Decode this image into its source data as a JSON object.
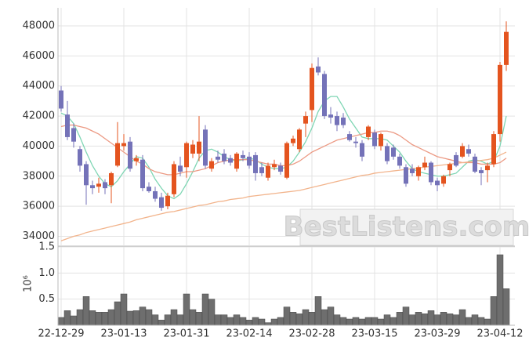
{
  "chart_data": [
    {
      "type": "candlestick",
      "up_color": "#e4541f",
      "down_color": "#7472b8",
      "open": [
        43700,
        42100,
        41200,
        39800,
        38800,
        37400,
        37300,
        37600,
        37400,
        38700,
        40000,
        40300,
        39000,
        39100,
        37300,
        37000,
        36600,
        36000,
        36800,
        38700,
        38600,
        39500,
        39500,
        41100,
        38500,
        39300,
        39500,
        39200,
        38500,
        39400,
        39300,
        39400,
        38600,
        37900,
        38600,
        38700,
        37900,
        40200,
        39800,
        41500,
        42400,
        45300,
        44800,
        42100,
        42000,
        41900,
        40800,
        40300,
        40200,
        40600,
        40900,
        40000,
        40000,
        39900,
        39300,
        38600,
        38500,
        38000,
        38600,
        38900,
        37700,
        37500,
        38400,
        39400,
        39300,
        39800,
        39300,
        38400,
        38400,
        38800,
        40800,
        45400
      ],
      "high": [
        44000,
        43000,
        41500,
        40000,
        39000,
        37700,
        37900,
        37800,
        38300,
        41600,
        40800,
        40600,
        39400,
        39400,
        37600,
        37300,
        36900,
        36900,
        39000,
        39300,
        40300,
        40400,
        42000,
        41400,
        39200,
        39700,
        39800,
        39400,
        39600,
        39700,
        39600,
        39600,
        38900,
        38900,
        39100,
        38900,
        40300,
        40700,
        41200,
        42300,
        45500,
        45900,
        45000,
        42600,
        42300,
        42200,
        41000,
        40600,
        40400,
        41400,
        41100,
        40900,
        40200,
        40100,
        39500,
        38800,
        38800,
        38700,
        39300,
        39000,
        37900,
        38100,
        38900,
        39600,
        40200,
        40100,
        39500,
        38600,
        38900,
        41000,
        45600,
        48300
      ],
      "low": [
        42300,
        40400,
        39900,
        38300,
        36100,
        36800,
        36900,
        36800,
        36200,
        38600,
        39700,
        38300,
        38700,
        37000,
        36900,
        36300,
        35700,
        35800,
        36600,
        38000,
        37900,
        39200,
        39000,
        38500,
        38300,
        38900,
        38800,
        38700,
        38300,
        39000,
        38500,
        37700,
        38000,
        37700,
        38400,
        38100,
        37800,
        40000,
        39600,
        40600,
        41600,
        44700,
        41800,
        41500,
        41000,
        41200,
        40300,
        39900,
        39000,
        40400,
        39800,
        39700,
        38800,
        39100,
        38500,
        37300,
        38000,
        37700,
        38400,
        37400,
        37000,
        37300,
        38000,
        38600,
        39200,
        39300,
        38200,
        37400,
        37600,
        38600,
        40300,
        45000
      ],
      "close": [
        42500,
        40600,
        40300,
        38700,
        37400,
        37200,
        37500,
        37200,
        38200,
        40200,
        40200,
        38500,
        39200,
        37200,
        37000,
        36500,
        35900,
        36700,
        38800,
        38300,
        40200,
        40100,
        40300,
        38700,
        39000,
        39100,
        39000,
        38900,
        39500,
        39200,
        38700,
        38200,
        38200,
        38700,
        38800,
        38300,
        40200,
        40500,
        41100,
        42000,
        45200,
        44900,
        42000,
        41900,
        41400,
        41400,
        40400,
        40200,
        39300,
        41300,
        40000,
        40800,
        39000,
        39300,
        38700,
        37500,
        38200,
        38600,
        38900,
        37600,
        37400,
        38000,
        38800,
        38700,
        40000,
        39500,
        38300,
        38200,
        38700,
        40800,
        45400,
        47600
      ],
      "lines": [
        {
          "color": "#7fd6b4",
          "values": [
            42200,
            42000,
            41500,
            40600,
            39600,
            38700,
            38000,
            37500,
            37300,
            37700,
            38300,
            38800,
            39300,
            39200,
            38600,
            37800,
            37200,
            36700,
            36500,
            36800,
            37500,
            38300,
            39200,
            39700,
            39800,
            39600,
            39300,
            39100,
            39000,
            39100,
            39200,
            39100,
            38800,
            38600,
            38500,
            38500,
            38600,
            39000,
            39600,
            40300,
            41200,
            42300,
            43000,
            43300,
            43300,
            42600,
            41800,
            41200,
            40600,
            40500,
            40500,
            40500,
            40400,
            40000,
            39600,
            39000,
            38500,
            38300,
            38200,
            38100,
            38000,
            38000,
            38100,
            38200,
            38600,
            39000,
            39100,
            39000,
            38800,
            39000,
            40000,
            42000
          ]
        },
        {
          "color": "#ec9a84",
          "values": [
            41300,
            41400,
            41400,
            41300,
            41200,
            41000,
            40800,
            40500,
            40200,
            39900,
            39600,
            39300,
            39000,
            38800,
            38500,
            38300,
            38200,
            38100,
            38100,
            38200,
            38300,
            38300,
            38400,
            38500,
            38700,
            38900,
            39000,
            39100,
            39100,
            39100,
            39100,
            39000,
            38900,
            38800,
            38800,
            38700,
            38700,
            38800,
            39000,
            39300,
            39600,
            39800,
            40000,
            40200,
            40400,
            40500,
            40600,
            40700,
            40800,
            40900,
            40900,
            41000,
            41000,
            40900,
            40700,
            40400,
            40100,
            39900,
            39700,
            39500,
            39300,
            39200,
            39100,
            39000,
            38900,
            38900,
            38900,
            38800,
            38800,
            38800,
            38900,
            39200
          ]
        },
        {
          "color": "#f2b48c",
          "values": [
            33700,
            33850,
            34000,
            34100,
            34250,
            34350,
            34450,
            34550,
            34650,
            34750,
            34850,
            34950,
            35100,
            35200,
            35300,
            35400,
            35500,
            35600,
            35650,
            35750,
            35850,
            35950,
            36050,
            36100,
            36200,
            36300,
            36350,
            36450,
            36500,
            36550,
            36650,
            36700,
            36750,
            36800,
            36850,
            36900,
            36950,
            37000,
            37050,
            37150,
            37250,
            37350,
            37450,
            37550,
            37650,
            37750,
            37850,
            37950,
            38050,
            38100,
            38200,
            38250,
            38300,
            38350,
            38400,
            38450,
            38500,
            38550,
            38600,
            38650,
            38700,
            38750,
            38800,
            38850,
            38900,
            38950,
            39000,
            39050,
            39100,
            39200,
            39400,
            39600
          ]
        }
      ],
      "ylim": [
        33400,
        49200
      ],
      "yticks": [
        34000,
        36000,
        38000,
        40000,
        42000,
        44000,
        46000,
        48000
      ],
      "grid": true,
      "watermark": "BestListens.com"
    },
    {
      "type": "bar",
      "color": "#6e6e6e",
      "y_unit_label": "10⁶",
      "categories": [
        "22-12-29",
        null,
        null,
        null,
        null,
        null,
        null,
        null,
        null,
        null,
        "23-01-13",
        null,
        null,
        null,
        null,
        null,
        null,
        null,
        null,
        null,
        "23-01-31",
        null,
        null,
        null,
        null,
        null,
        null,
        null,
        null,
        null,
        "23-02-14",
        null,
        null,
        null,
        null,
        null,
        null,
        null,
        null,
        null,
        "23-02-28",
        null,
        null,
        null,
        null,
        null,
        null,
        null,
        null,
        null,
        "23-03-15",
        null,
        null,
        null,
        null,
        null,
        null,
        null,
        null,
        null,
        "23-03-29",
        null,
        null,
        null,
        null,
        null,
        null,
        null,
        null,
        null,
        "23-04-12",
        null
      ],
      "values": [
        0.15,
        0.28,
        0.18,
        0.3,
        0.55,
        0.28,
        0.25,
        0.25,
        0.3,
        0.45,
        0.6,
        0.27,
        0.28,
        0.35,
        0.3,
        0.2,
        0.1,
        0.2,
        0.3,
        0.2,
        0.6,
        0.3,
        0.25,
        0.6,
        0.5,
        0.2,
        0.2,
        0.15,
        0.2,
        0.15,
        0.1,
        0.15,
        0.12,
        0.05,
        0.12,
        0.15,
        0.35,
        0.25,
        0.22,
        0.3,
        0.25,
        0.55,
        0.3,
        0.35,
        0.2,
        0.15,
        0.12,
        0.15,
        0.12,
        0.15,
        0.15,
        0.12,
        0.2,
        0.15,
        0.25,
        0.35,
        0.2,
        0.25,
        0.22,
        0.28,
        0.2,
        0.25,
        0.22,
        0.2,
        0.3,
        0.15,
        0.2,
        0.15,
        0.12,
        0.55,
        1.35,
        0.7
      ],
      "ylim": [
        0,
        1.5
      ],
      "yticks": [
        0.5,
        {
          "value": 1.0,
          "label": "1.0"
        },
        1.5
      ],
      "grid": true
    }
  ]
}
